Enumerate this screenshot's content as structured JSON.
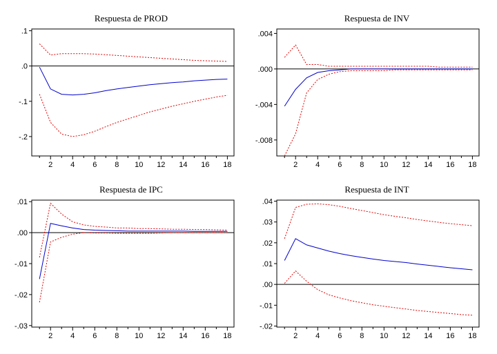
{
  "chart_data": [
    {
      "type": "line",
      "title": "Respuesta de PROD",
      "x": [
        1,
        2,
        3,
        4,
        5,
        6,
        7,
        8,
        9,
        10,
        11,
        12,
        13,
        14,
        15,
        16,
        17,
        18
      ],
      "xticks": [
        "2",
        "4",
        "6",
        "8",
        "10",
        "12",
        "14",
        "16",
        "18"
      ],
      "xtick_values": [
        2,
        4,
        6,
        8,
        10,
        12,
        14,
        16,
        18
      ],
      "ylim": [
        -0.255,
        0.105
      ],
      "yticks": [
        ".1",
        ".0",
        "-.1",
        "-.2"
      ],
      "ytick_values": [
        0.1,
        0.0,
        -0.1,
        -0.2
      ],
      "zero_line": true,
      "series": [
        {
          "role": "upper",
          "color": "#e00000",
          "dash": true,
          "values": [
            0.063,
            0.031,
            0.035,
            0.035,
            0.035,
            0.034,
            0.032,
            0.03,
            0.028,
            0.026,
            0.024,
            0.022,
            0.02,
            0.018,
            0.016,
            0.015,
            0.014,
            0.013
          ]
        },
        {
          "role": "response",
          "color": "#0000cc",
          "dash": false,
          "values": [
            -0.003,
            -0.065,
            -0.08,
            -0.082,
            -0.08,
            -0.076,
            -0.07,
            -0.065,
            -0.061,
            -0.057,
            -0.053,
            -0.05,
            -0.047,
            -0.045,
            -0.042,
            -0.04,
            -0.038,
            -0.037
          ]
        },
        {
          "role": "lower",
          "color": "#e00000",
          "dash": true,
          "values": [
            -0.08,
            -0.16,
            -0.193,
            -0.2,
            -0.195,
            -0.185,
            -0.172,
            -0.16,
            -0.15,
            -0.14,
            -0.13,
            -0.122,
            -0.114,
            -0.107,
            -0.1,
            -0.094,
            -0.088,
            -0.083
          ]
        }
      ]
    },
    {
      "type": "line",
      "title": "Respuesta de INV",
      "x": [
        1,
        2,
        3,
        4,
        5,
        6,
        7,
        8,
        9,
        10,
        11,
        12,
        13,
        14,
        15,
        16,
        17,
        18
      ],
      "xticks": [
        "2",
        "4",
        "6",
        "8",
        "10",
        "12",
        "14",
        "16",
        "18"
      ],
      "xtick_values": [
        2,
        4,
        6,
        8,
        10,
        12,
        14,
        16,
        18
      ],
      "ylim": [
        -0.0098,
        0.0045
      ],
      "yticks": [
        ".004",
        ".000",
        "-.004",
        "-.008"
      ],
      "ytick_values": [
        0.004,
        0.0,
        -0.004,
        -0.008
      ],
      "zero_line": true,
      "series": [
        {
          "role": "upper",
          "color": "#e00000",
          "dash": true,
          "values": [
            0.0013,
            0.0027,
            0.0005,
            0.0005,
            0.0003,
            0.0003,
            0.0003,
            0.0003,
            0.0003,
            0.0003,
            0.0003,
            0.0003,
            0.0003,
            0.0003,
            0.0002,
            0.0002,
            0.0002,
            0.0002
          ]
        },
        {
          "role": "response",
          "color": "#0000cc",
          "dash": false,
          "values": [
            -0.0042,
            -0.0023,
            -0.001,
            -0.0004,
            -0.0002,
            -0.0001,
            0.0,
            0.0,
            0.0,
            0.0,
            0.0,
            0.0,
            0.0,
            0.0,
            0.0,
            0.0,
            0.0,
            0.0
          ]
        },
        {
          "role": "lower",
          "color": "#e00000",
          "dash": true,
          "values": [
            -0.0098,
            -0.0073,
            -0.0027,
            -0.0012,
            -0.0006,
            -0.0003,
            -0.0002,
            -0.0002,
            -0.0002,
            -0.0002,
            -0.0001,
            -0.0001,
            -0.0001,
            -0.0001,
            -0.0001,
            -0.0001,
            -0.0001,
            -0.0001
          ]
        }
      ]
    },
    {
      "type": "line",
      "title": "Respuesta de IPC",
      "x": [
        1,
        2,
        3,
        4,
        5,
        6,
        7,
        8,
        9,
        10,
        11,
        12,
        13,
        14,
        15,
        16,
        17,
        18
      ],
      "xticks": [
        "2",
        "4",
        "6",
        "8",
        "10",
        "12",
        "14",
        "16",
        "18"
      ],
      "xtick_values": [
        2,
        4,
        6,
        8,
        10,
        12,
        14,
        16,
        18
      ],
      "ylim": [
        -0.0305,
        0.0105
      ],
      "yticks": [
        ".01",
        ".00",
        "-.01",
        "-.02",
        "-.03"
      ],
      "ytick_values": [
        0.01,
        0.0,
        -0.01,
        -0.02,
        -0.03
      ],
      "zero_line": true,
      "series": [
        {
          "role": "upper",
          "color": "#e00000",
          "dash": true,
          "values": [
            -0.008,
            0.0095,
            0.006,
            0.0035,
            0.0025,
            0.002,
            0.0018,
            0.0015,
            0.0015,
            0.0013,
            0.0013,
            0.0012,
            0.0011,
            0.0011,
            0.001,
            0.001,
            0.0009,
            0.0008
          ]
        },
        {
          "role": "response",
          "color": "#0000cc",
          "dash": false,
          "values": [
            -0.015,
            0.003,
            0.0022,
            0.0015,
            0.001,
            0.0008,
            0.0007,
            0.0006,
            0.0005,
            0.0005,
            0.0005,
            0.0005,
            0.0005,
            0.0005,
            0.0004,
            0.0004,
            0.0004,
            0.0004
          ]
        },
        {
          "role": "lower",
          "color": "#e00000",
          "dash": true,
          "values": [
            -0.0225,
            -0.003,
            -0.0015,
            -0.0005,
            0.0,
            -0.0001,
            -0.0001,
            -0.0002,
            -0.0002,
            -0.0002,
            -0.0002,
            -0.0001,
            0.0,
            0.0,
            0.0,
            0.0,
            0.0,
            0.0
          ]
        }
      ]
    },
    {
      "type": "line",
      "title": "Respuesta de INT",
      "x": [
        1,
        2,
        3,
        4,
        5,
        6,
        7,
        8,
        9,
        10,
        11,
        12,
        13,
        14,
        15,
        16,
        17,
        18
      ],
      "xticks": [
        "2",
        "4",
        "6",
        "8",
        "10",
        "12",
        "14",
        "16",
        "18"
      ],
      "xtick_values": [
        2,
        4,
        6,
        8,
        10,
        12,
        14,
        16,
        18
      ],
      "ylim": [
        -0.0205,
        0.0405
      ],
      "yticks": [
        ".04",
        ".03",
        ".02",
        ".01",
        ".00",
        "-.01",
        "-.02"
      ],
      "ytick_values": [
        0.04,
        0.03,
        0.02,
        0.01,
        0.0,
        -0.01,
        -0.02
      ],
      "zero_line": true,
      "series": [
        {
          "role": "upper",
          "color": "#e00000",
          "dash": true,
          "values": [
            0.022,
            0.037,
            0.0385,
            0.0387,
            0.0383,
            0.0375,
            0.0365,
            0.0355,
            0.0345,
            0.0335,
            0.0327,
            0.032,
            0.0312,
            0.0305,
            0.0298,
            0.0292,
            0.0287,
            0.0282
          ]
        },
        {
          "role": "response",
          "color": "#0000cc",
          "dash": false,
          "values": [
            0.0115,
            0.022,
            0.019,
            0.0175,
            0.016,
            0.0148,
            0.0138,
            0.013,
            0.0122,
            0.0115,
            0.011,
            0.0105,
            0.0098,
            0.0092,
            0.0086,
            0.008,
            0.0075,
            0.007
          ]
        },
        {
          "role": "lower",
          "color": "#e00000",
          "dash": true,
          "values": [
            0.0005,
            0.0065,
            0.0015,
            -0.0025,
            -0.005,
            -0.0065,
            -0.0078,
            -0.0088,
            -0.0098,
            -0.0105,
            -0.0112,
            -0.0118,
            -0.0125,
            -0.013,
            -0.0135,
            -0.014,
            -0.0145,
            -0.0148
          ]
        }
      ]
    }
  ]
}
